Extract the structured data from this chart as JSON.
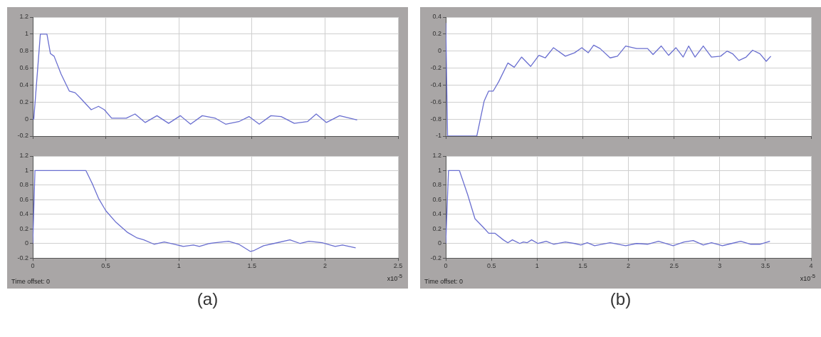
{
  "chart_data": [
    {
      "type": "line",
      "color": "#6a6fd0",
      "xlim": [
        0,
        2.5
      ],
      "ylim": [
        -0.2,
        1.2
      ],
      "xticks": [
        0,
        0.5,
        1,
        1.5,
        2,
        2.5
      ],
      "yticks": [
        -0.2,
        0,
        0.2,
        0.4,
        0.6,
        0.8,
        1,
        1.2
      ],
      "grid": true,
      "tick_labels": "y",
      "x": [
        0,
        0.007,
        0.052,
        0.097,
        0.121,
        0.146,
        0.194,
        0.25,
        0.29,
        0.33,
        0.4,
        0.45,
        0.49,
        0.54,
        0.64,
        0.7,
        0.77,
        0.85,
        0.93,
        1.01,
        1.08,
        1.16,
        1.25,
        1.32,
        1.41,
        1.48,
        1.55,
        1.63,
        1.7,
        1.79,
        1.88,
        1.94,
        2.01,
        2.1,
        2.17,
        2.22
      ],
      "values": [
        0,
        0,
        1,
        1,
        0.77,
        0.74,
        0.53,
        0.33,
        0.31,
        0.24,
        0.11,
        0.15,
        0.11,
        0.01,
        0.01,
        0.06,
        -0.04,
        0.04,
        -0.05,
        0.04,
        -0.06,
        0.04,
        0.01,
        -0.06,
        -0.03,
        0.03,
        -0.06,
        0.04,
        0.03,
        -0.05,
        -0.03,
        0.06,
        -0.04,
        0.04,
        0.01,
        -0.01
      ]
    },
    {
      "type": "line",
      "color": "#6a6fd0",
      "xlim": [
        0,
        2.5
      ],
      "ylim": [
        -0.2,
        1.2
      ],
      "xticks": [
        0,
        0.5,
        1,
        1.5,
        2,
        2.5
      ],
      "yticks": [
        -0.2,
        0,
        0.2,
        0.4,
        0.6,
        0.8,
        1,
        1.2
      ],
      "grid": true,
      "annotations": [
        "Time offset: 0",
        "x10$^{-5}$",
        "(a)"
      ],
      "x": [
        0,
        0.015,
        0.364,
        0.41,
        0.45,
        0.5,
        0.57,
        0.65,
        0.71,
        0.76,
        0.83,
        0.9,
        0.97,
        1.03,
        1.1,
        1.14,
        1.21,
        1.25,
        1.34,
        1.41,
        1.49,
        1.51,
        1.58,
        1.65,
        1.76,
        1.83,
        1.89,
        1.98,
        2.07,
        2.12,
        2.21
      ],
      "values": [
        0,
        1,
        1,
        0.81,
        0.62,
        0.45,
        0.29,
        0.15,
        0.08,
        0.05,
        -0.01,
        0.02,
        -0.01,
        -0.04,
        -0.02,
        -0.04,
        0,
        0.01,
        0.03,
        -0.01,
        -0.11,
        -0.1,
        -0.03,
        0,
        0.05,
        0,
        0.03,
        0.01,
        -0.04,
        -0.02,
        -0.06
      ]
    },
    {
      "type": "line",
      "color": "#6a6fd0",
      "xlim": [
        0,
        4
      ],
      "ylim": [
        -1,
        0.4
      ],
      "xticks": [
        0,
        0.5,
        1,
        1.5,
        2,
        2.5,
        3,
        3.5,
        4
      ],
      "yticks": [
        -1,
        -0.8,
        -0.6,
        -0.4,
        -0.2,
        0,
        0.2,
        0.4
      ],
      "grid": true,
      "tick_labels": "y",
      "x": [
        0,
        0.02,
        0.34,
        0.42,
        0.47,
        0.52,
        0.58,
        0.68,
        0.75,
        0.83,
        0.93,
        1.02,
        1.09,
        1.18,
        1.31,
        1.41,
        1.49,
        1.56,
        1.62,
        1.69,
        1.8,
        1.88,
        1.97,
        2.09,
        2.21,
        2.27,
        2.36,
        2.44,
        2.52,
        2.6,
        2.66,
        2.73,
        2.82,
        2.91,
        3.01,
        3.08,
        3.14,
        3.21,
        3.29,
        3.36,
        3.44,
        3.51,
        3.56
      ],
      "values": [
        0.33,
        -1,
        -1,
        -0.59,
        -0.47,
        -0.47,
        -0.36,
        -0.14,
        -0.19,
        -0.07,
        -0.18,
        -0.05,
        -0.08,
        0.04,
        -0.06,
        -0.02,
        0.04,
        -0.02,
        0.07,
        0.03,
        -0.08,
        -0.06,
        0.06,
        0.03,
        0.03,
        -0.04,
        0.06,
        -0.05,
        0.04,
        -0.07,
        0.06,
        -0.07,
        0.06,
        -0.07,
        -0.06,
        0,
        -0.03,
        -0.11,
        -0.07,
        0.01,
        -0.03,
        -0.12,
        -0.06
      ]
    },
    {
      "type": "line",
      "color": "#6a6fd0",
      "xlim": [
        0,
        4
      ],
      "ylim": [
        -0.2,
        1.2
      ],
      "xticks": [
        0,
        0.5,
        1,
        1.5,
        2,
        2.5,
        3,
        3.5,
        4
      ],
      "yticks": [
        -0.2,
        0,
        0.2,
        0.4,
        0.6,
        0.8,
        1,
        1.2
      ],
      "grid": true,
      "annotations": [
        "Time offset: 0",
        "x10$^{-5}$",
        "(b)"
      ],
      "x": [
        0,
        0.03,
        0.15,
        0.24,
        0.32,
        0.42,
        0.47,
        0.54,
        0.63,
        0.68,
        0.73,
        0.81,
        0.85,
        0.89,
        0.94,
        1.01,
        1.1,
        1.18,
        1.31,
        1.41,
        1.48,
        1.55,
        1.63,
        1.8,
        1.97,
        2.09,
        2.21,
        2.33,
        2.49,
        2.61,
        2.71,
        2.82,
        2.91,
        3.03,
        3.13,
        3.23,
        3.34,
        3.44,
        3.55
      ],
      "values": [
        0,
        1,
        1,
        0.67,
        0.34,
        0.21,
        0.14,
        0.14,
        0.05,
        0.01,
        0.05,
        0,
        0.02,
        0.01,
        0.05,
        0,
        0.03,
        -0.01,
        0.02,
        0,
        -0.02,
        0.01,
        -0.03,
        0.01,
        -0.03,
        0,
        -0.01,
        0.03,
        -0.03,
        0.02,
        0.04,
        -0.02,
        0.01,
        -0.03,
        0,
        0.03,
        -0.01,
        -0.01,
        0.03
      ]
    }
  ]
}
